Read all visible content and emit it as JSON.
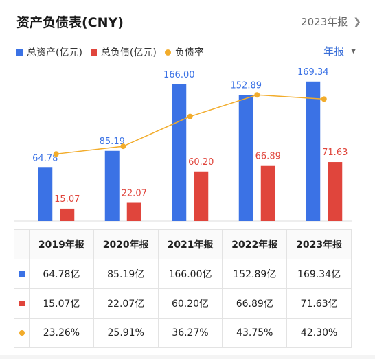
{
  "header": {
    "title": "资产负债表(CNY)",
    "period_link": "2023年报"
  },
  "legend": [
    {
      "label": "总资产(亿元)",
      "color": "#3b72e5",
      "shape": "square"
    },
    {
      "label": "总负债(亿元)",
      "color": "#e0453c",
      "shape": "square"
    },
    {
      "label": "负债率",
      "color": "#f2ac2b",
      "shape": "dot"
    }
  ],
  "frequency_select": {
    "value": "年报"
  },
  "colors": {
    "assets": "#3b72e5",
    "liabilities": "#e0453c",
    "ratio": "#f2ac2b"
  },
  "chart_data": {
    "type": "bar",
    "categories": [
      "2019年报",
      "2020年报",
      "2021年报",
      "2022年报",
      "2023年报"
    ],
    "series": [
      {
        "name": "总资产(亿元)",
        "type": "bar",
        "values": [
          64.78,
          85.19,
          166.0,
          152.89,
          169.34
        ],
        "labels": [
          "64.78",
          "85.19",
          "166.00",
          "152.89",
          "169.34"
        ]
      },
      {
        "name": "总负债(亿元)",
        "type": "bar",
        "values": [
          15.07,
          22.07,
          60.2,
          66.89,
          71.63
        ],
        "labels": [
          "15.07",
          "22.07",
          "60.20",
          "66.89",
          "71.63"
        ]
      },
      {
        "name": "负债率",
        "type": "line",
        "values": [
          23.26,
          25.91,
          36.27,
          43.75,
          42.3
        ]
      }
    ],
    "ylim": [
      0,
      175
    ],
    "ratio_ylim": [
      0,
      50
    ],
    "grid": false
  },
  "table": {
    "headers": [
      "2019年报",
      "2020年报",
      "2021年报",
      "2022年报",
      "2023年报"
    ],
    "rows": [
      {
        "marker": "square",
        "color": "#3b72e5",
        "cells": [
          "64.78亿",
          "85.19亿",
          "166.00亿",
          "152.89亿",
          "169.34亿"
        ]
      },
      {
        "marker": "square",
        "color": "#e0453c",
        "cells": [
          "15.07亿",
          "22.07亿",
          "60.20亿",
          "66.89亿",
          "71.63亿"
        ]
      },
      {
        "marker": "dot",
        "color": "#f2ac2b",
        "cells": [
          "23.26%",
          "25.91%",
          "36.27%",
          "43.75%",
          "42.30%"
        ]
      }
    ]
  }
}
